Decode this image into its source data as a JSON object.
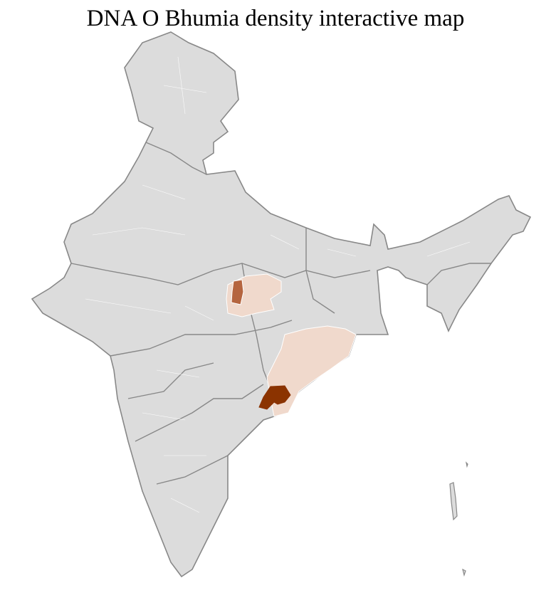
{
  "title": "DNA O Bhumia density interactive map",
  "colors": {
    "base_fill": "#dcdcdc",
    "state_border": "#888888",
    "district_border": "#ffffff",
    "low_density": "#f0d9cc",
    "medium_density": "#b5653f",
    "high_density": "#8b3300"
  },
  "map": {
    "type": "choropleth",
    "regions_highlighted": [
      {
        "area": "northern Chhattisgarh / Madhya Pradesh",
        "level": "medium"
      },
      {
        "area": "northern Chhattisgarh / Madhya Pradesh surroundings",
        "level": "low"
      },
      {
        "area": "Odisha",
        "level": "low"
      },
      {
        "area": "southern Odisha / northern Andhra Pradesh",
        "level": "high"
      }
    ]
  }
}
